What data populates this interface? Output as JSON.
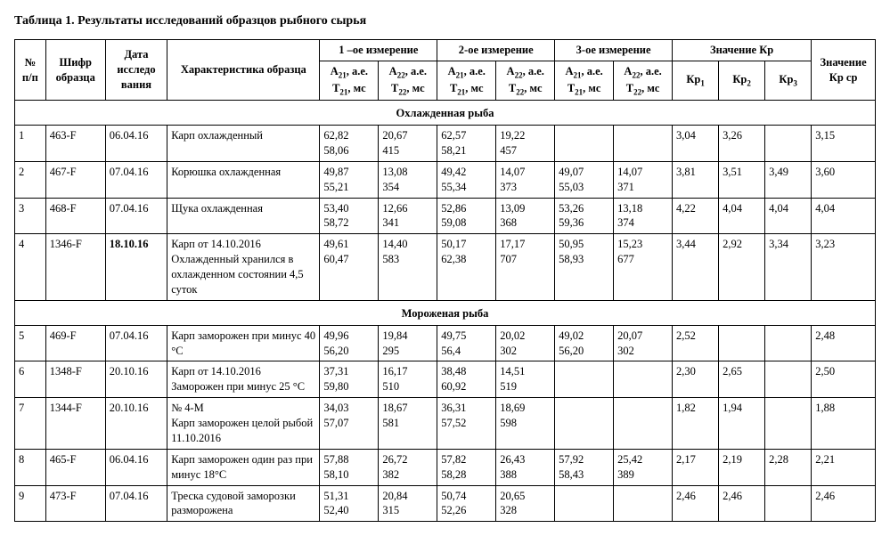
{
  "title": "Таблица 1. Результаты исследований образцов рыбного сырья",
  "headers": {
    "n": "№ п/п",
    "code": "Шифр образца",
    "date": "Дата исследо вания",
    "desc": "Характеристика образца",
    "m1": "1 –ое измерение",
    "m2": "2-ое измерение",
    "m3": "3-ое измерение",
    "kr": "Значение Кр",
    "kr_avg": "Значение Кр ср",
    "sub_a21": "A₂₁, а.е. T₂₁, мс",
    "sub_a22": "A₂₂, а.е. T₂₂, мс",
    "kr1": "Кр₁",
    "kr2": "Кр₂",
    "kr3": "Кр₃"
  },
  "sections": [
    {
      "label": "Охлажденная рыба",
      "rows": [
        {
          "n": "1",
          "code": "463-F",
          "date": "06.04.16",
          "desc": "Карп охлажденный",
          "m1a": "62,82\n58,06",
          "m1b": "20,67\n415",
          "m2a": "62,57\n58,21",
          "m2b": "19,22\n457",
          "m3a": "",
          "m3b": "",
          "kr1": "3,04",
          "kr2": "3,26",
          "kr3": "",
          "avg": "3,15",
          "bold_date": false
        },
        {
          "n": "2",
          "code": "467-F",
          "date": "07.04.16",
          "desc": "Корюшка охлажденная",
          "m1a": "49,87\n55,21",
          "m1b": "13,08\n354",
          "m2a": "49,42\n55,34",
          "m2b": "14,07\n373",
          "m3a": "49,07\n55,03",
          "m3b": "14,07\n371",
          "kr1": "3,81",
          "kr2": "3,51",
          "kr3": "3,49",
          "avg": "3,60",
          "bold_date": false
        },
        {
          "n": "3",
          "code": "468-F",
          "date": "07.04.16",
          "desc": "Щука охлажденная",
          "m1a": "53,40\n58,72",
          "m1b": "12,66\n341",
          "m2a": "52,86\n59,08",
          "m2b": "13,09\n368",
          "m3a": "53,26\n59,36",
          "m3b": "13,18\n374",
          "kr1": "4,22",
          "kr2": "4,04",
          "kr3": "4,04",
          "avg": "4,04",
          "bold_date": false
        },
        {
          "n": "4",
          "code": "1346-F",
          "date": "18.10.16",
          "desc": "Карп от 14.10.2016 Охлажденный хранился в охлажденном состоянии 4,5 суток",
          "m1a": "49,61\n60,47",
          "m1b": "14,40\n583",
          "m2a": "50,17\n62,38",
          "m2b": "17,17\n707",
          "m3a": "50,95\n58,93",
          "m3b": "15,23\n677",
          "kr1": "3,44",
          "kr2": "2,92",
          "kr3": "3,34",
          "avg": "3,23",
          "bold_date": true
        }
      ]
    },
    {
      "label": "Мороженая рыба",
      "rows": [
        {
          "n": "5",
          "code": "469-F",
          "date": "07.04.16",
          "desc": "Карп заморожен при минус 40 °С",
          "m1a": "49,96\n56,20",
          "m1b": "19,84\n295",
          "m2a": "49,75\n56,4",
          "m2b": "20,02\n302",
          "m3a": "49,02\n56,20",
          "m3b": "20,07\n302",
          "kr1": "2,52",
          "kr2": "",
          "kr3": "",
          "avg": "2,48",
          "bold_date": false
        },
        {
          "n": "6",
          "code": "1348-F",
          "date": "20.10.16",
          "desc": "Карп от 14.10.2016 Заморожен при минус 25 °С",
          "m1a": "37,31\n59,80",
          "m1b": "16,17\n510",
          "m2a": "38,48\n60,92",
          "m2b": "14,51\n519",
          "m3a": "",
          "m3b": "",
          "kr1": "2,30",
          "kr2": "2,65",
          "kr3": "",
          "avg": "2,50",
          "bold_date": false
        },
        {
          "n": "7",
          "code": "1344-F",
          "date": "20.10.16",
          "desc": "№ 4-М\nКарп заморожен целой рыбой 11.10.2016",
          "m1a": "34,03\n57,07",
          "m1b": "18,67\n581",
          "m2a": "36,31\n57,52",
          "m2b": "18,69\n598",
          "m3a": "",
          "m3b": "",
          "kr1": "1,82",
          "kr2": "1,94",
          "kr3": "",
          "avg": "1,88",
          "bold_date": false
        },
        {
          "n": "8",
          "code": "465-F",
          "date": "06.04.16",
          "desc": "Карп заморожен один раз при минус 18°С",
          "m1a": "57,88\n58,10",
          "m1b": "26,72\n382",
          "m2a": "57,82\n58,28",
          "m2b": "26,43\n388",
          "m3a": "57,92\n58,43",
          "m3b": "25,42\n389",
          "kr1": "2,17",
          "kr2": "2,19",
          "kr3": "2,28",
          "avg": "2,21",
          "bold_date": false
        },
        {
          "n": "9",
          "code": "473-F",
          "date": "07.04.16",
          "desc": "Треска судовой заморозки разморожена",
          "m1a": "51,31\n52,40",
          "m1b": "20,84\n315",
          "m2a": "50,74\n52,26",
          "m2b": "20,65\n328",
          "m3a": "",
          "m3b": "",
          "kr1": "2,46",
          "kr2": "2,46",
          "kr3": "",
          "avg": "2,46",
          "bold_date": false
        }
      ]
    }
  ]
}
